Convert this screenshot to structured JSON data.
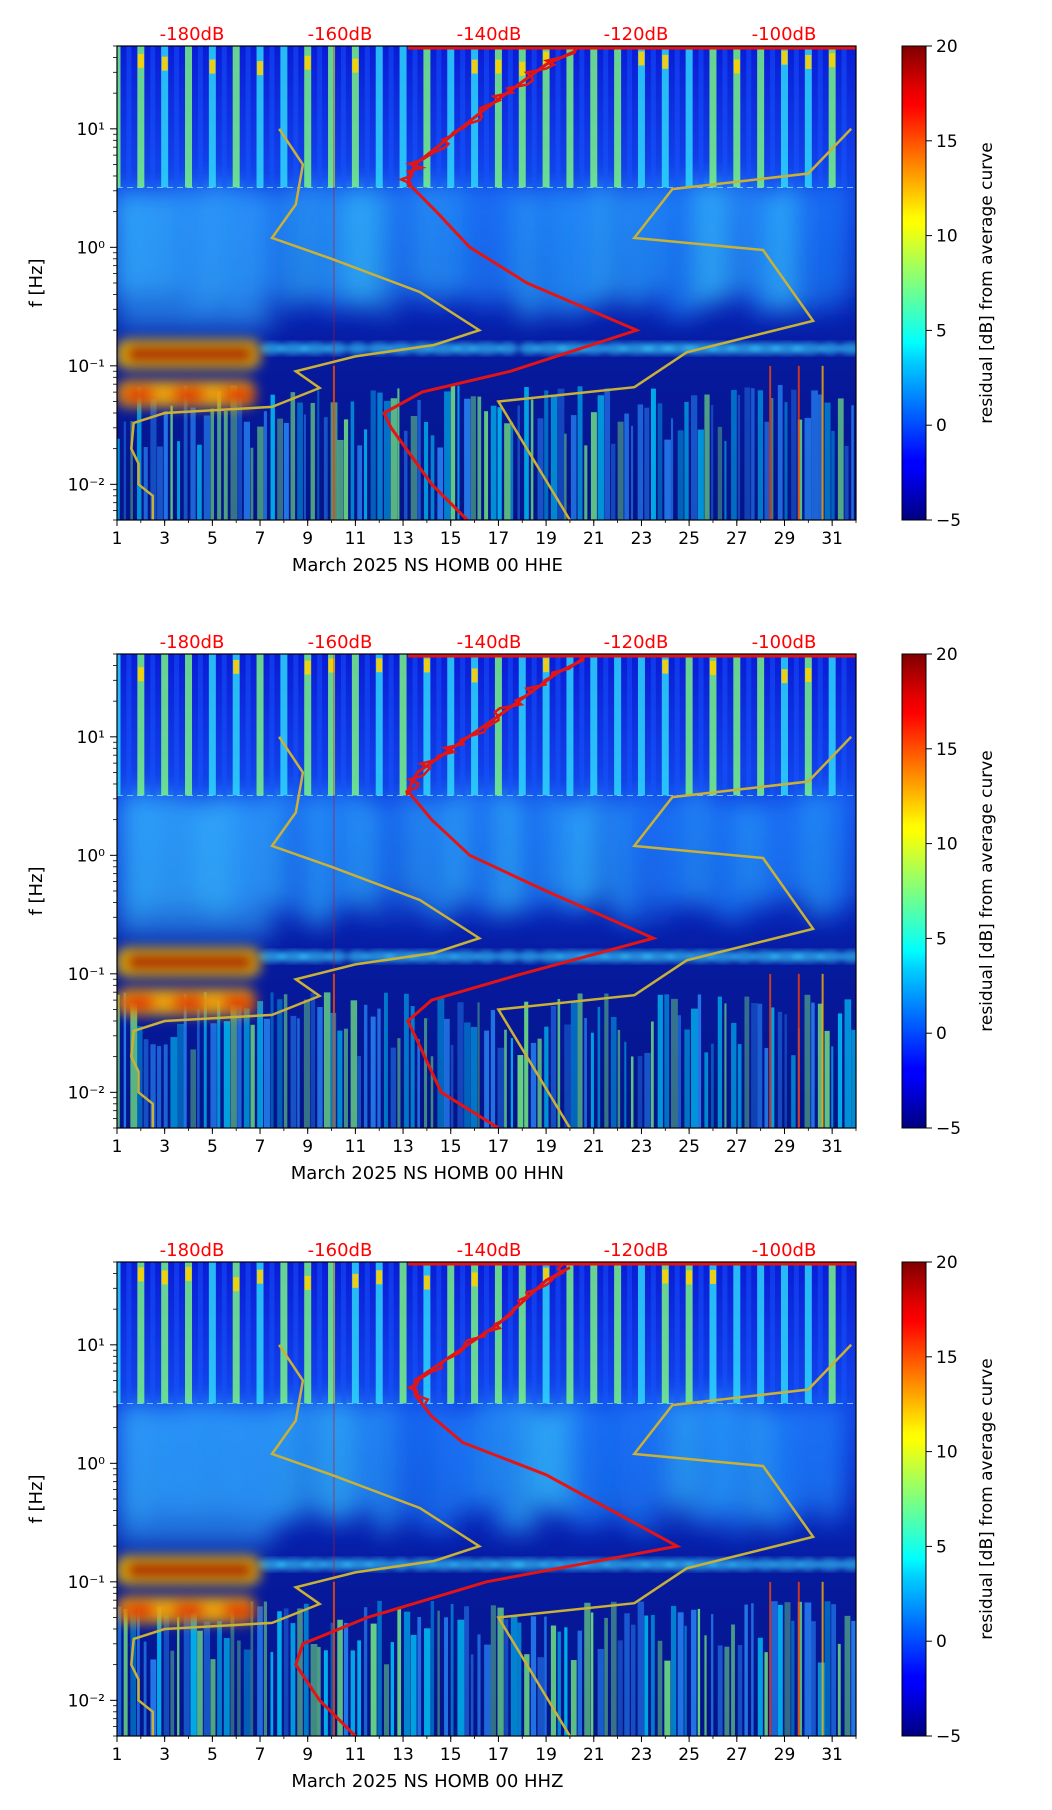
{
  "figure": {
    "colormap": "jet",
    "colors": {
      "db_scale": "#ff0000",
      "nlnm_nhnm": "#c9b037",
      "median_psd": "#e51414"
    }
  },
  "chart_data": [
    {
      "type": "heatmap",
      "channel": "HHE",
      "xlabel": "March 2025 NS HOMB 00 HHE",
      "ylabel": "f [Hz]",
      "x_ticks": [
        "1",
        "3",
        "5",
        "7",
        "9",
        "11",
        "13",
        "15",
        "17",
        "19",
        "21",
        "23",
        "25",
        "27",
        "29",
        "31"
      ],
      "xlim": [
        1,
        32
      ],
      "y_ticks": [
        "10⁻²",
        "10⁻¹",
        "10⁰",
        "10¹"
      ],
      "ylim_hz": [
        0.005,
        50
      ],
      "db_scale_labels": [
        "-180dB",
        "-160dB",
        "-140dB",
        "-120dB",
        "-100dB"
      ],
      "colorbar": {
        "label": "residual [dB] from average curve",
        "ticks": [
          "20",
          "15",
          "10",
          "5",
          "0",
          "−5"
        ],
        "range": [
          -5,
          20
        ]
      },
      "noise_models": {
        "nlnm": [
          [
            2.5,
            0.005
          ],
          [
            2.5,
            0.008
          ],
          [
            1.9,
            0.01
          ],
          [
            1.9,
            0.015
          ],
          [
            1.6,
            0.02
          ],
          [
            1.7,
            0.033
          ],
          [
            3.0,
            0.04
          ],
          [
            7.5,
            0.045
          ],
          [
            9.5,
            0.065
          ],
          [
            8.5,
            0.09
          ],
          [
            11.0,
            0.12
          ],
          [
            14.3,
            0.15
          ],
          [
            16.2,
            0.2
          ],
          [
            13.7,
            0.42
          ],
          [
            10.0,
            0.8
          ],
          [
            7.5,
            1.2
          ],
          [
            8.5,
            2.3
          ],
          [
            8.8,
            5
          ],
          [
            7.8,
            10
          ]
        ],
        "nhnm": [
          [
            20.0,
            0.005
          ],
          [
            17.0,
            0.05
          ],
          [
            22.7,
            0.066
          ],
          [
            24.9,
            0.13
          ],
          [
            30.2,
            0.24
          ],
          [
            28.1,
            0.95
          ],
          [
            22.7,
            1.2
          ],
          [
            24.3,
            3.1
          ],
          [
            30.0,
            4.2
          ],
          [
            31.8,
            10
          ]
        ]
      },
      "median_psd": [
        [
          15.7,
          0.005
        ],
        [
          14.2,
          0.01
        ],
        [
          12.5,
          0.03
        ],
        [
          12.2,
          0.04
        ],
        [
          13.8,
          0.06
        ],
        [
          17.5,
          0.09
        ],
        [
          22.8,
          0.2
        ],
        [
          18.2,
          0.5
        ],
        [
          15.8,
          1.0
        ],
        [
          14.4,
          2.0
        ],
        [
          13.2,
          3.5
        ],
        [
          13.5,
          5
        ],
        [
          16.5,
          15
        ],
        [
          19.0,
          35
        ],
        [
          20.2,
          45
        ]
      ]
    },
    {
      "type": "heatmap",
      "channel": "HHN",
      "xlabel": "March 2025 NS HOMB 00 HHN",
      "ylabel": "f [Hz]",
      "x_ticks": [
        "1",
        "3",
        "5",
        "7",
        "9",
        "11",
        "13",
        "15",
        "17",
        "19",
        "21",
        "23",
        "25",
        "27",
        "29",
        "31"
      ],
      "xlim": [
        1,
        32
      ],
      "y_ticks": [
        "10⁻²",
        "10⁻¹",
        "10⁰",
        "10¹"
      ],
      "ylim_hz": [
        0.005,
        50
      ],
      "db_scale_labels": [
        "-180dB",
        "-160dB",
        "-140dB",
        "-120dB",
        "-100dB"
      ],
      "colorbar": {
        "label": "residual [dB] from average curve",
        "ticks": [
          "20",
          "15",
          "10",
          "5",
          "0",
          "−5"
        ],
        "range": [
          -5,
          20
        ]
      },
      "noise_models": {
        "nlnm": [
          [
            2.5,
            0.005
          ],
          [
            2.5,
            0.008
          ],
          [
            1.9,
            0.01
          ],
          [
            1.9,
            0.015
          ],
          [
            1.6,
            0.02
          ],
          [
            1.7,
            0.033
          ],
          [
            3.0,
            0.04
          ],
          [
            7.5,
            0.045
          ],
          [
            9.5,
            0.065
          ],
          [
            8.5,
            0.09
          ],
          [
            11.0,
            0.12
          ],
          [
            14.3,
            0.15
          ],
          [
            16.2,
            0.2
          ],
          [
            13.7,
            0.42
          ],
          [
            10.0,
            0.8
          ],
          [
            7.5,
            1.2
          ],
          [
            8.5,
            2.3
          ],
          [
            8.8,
            5
          ],
          [
            7.8,
            10
          ]
        ],
        "nhnm": [
          [
            20.0,
            0.005
          ],
          [
            17.0,
            0.05
          ],
          [
            22.7,
            0.066
          ],
          [
            24.9,
            0.13
          ],
          [
            30.2,
            0.24
          ],
          [
            28.1,
            0.95
          ],
          [
            22.7,
            1.2
          ],
          [
            24.3,
            3.1
          ],
          [
            30.0,
            4.2
          ],
          [
            31.8,
            10
          ]
        ]
      },
      "median_psd": [
        [
          17.0,
          0.005
        ],
        [
          14.6,
          0.01
        ],
        [
          13.5,
          0.03
        ],
        [
          13.2,
          0.04
        ],
        [
          14.2,
          0.06
        ],
        [
          18.0,
          0.1
        ],
        [
          23.5,
          0.2
        ],
        [
          19.0,
          0.5
        ],
        [
          15.8,
          1.0
        ],
        [
          14.2,
          2.0
        ],
        [
          13.2,
          3.5
        ],
        [
          13.6,
          5
        ],
        [
          17.0,
          15
        ],
        [
          19.5,
          35
        ],
        [
          20.6,
          45
        ]
      ]
    },
    {
      "type": "heatmap",
      "channel": "HHZ",
      "xlabel": "March 2025 NS HOMB 00 HHZ",
      "ylabel": "f [Hz]",
      "x_ticks": [
        "1",
        "3",
        "5",
        "7",
        "9",
        "11",
        "13",
        "15",
        "17",
        "19",
        "21",
        "23",
        "25",
        "27",
        "29",
        "31"
      ],
      "xlim": [
        1,
        32
      ],
      "y_ticks": [
        "10⁻²",
        "10⁻¹",
        "10⁰",
        "10¹"
      ],
      "ylim_hz": [
        0.005,
        50
      ],
      "db_scale_labels": [
        "-180dB",
        "-160dB",
        "-140dB",
        "-120dB",
        "-100dB"
      ],
      "colorbar": {
        "label": "residual [dB] from average curve",
        "ticks": [
          "20",
          "15",
          "10",
          "5",
          "0",
          "−5"
        ],
        "range": [
          -5,
          20
        ]
      },
      "noise_models": {
        "nlnm": [
          [
            2.5,
            0.005
          ],
          [
            2.5,
            0.008
          ],
          [
            1.9,
            0.01
          ],
          [
            1.9,
            0.015
          ],
          [
            1.6,
            0.02
          ],
          [
            1.7,
            0.033
          ],
          [
            3.0,
            0.04
          ],
          [
            7.5,
            0.045
          ],
          [
            9.5,
            0.065
          ],
          [
            8.5,
            0.09
          ],
          [
            11.0,
            0.12
          ],
          [
            14.3,
            0.15
          ],
          [
            16.2,
            0.2
          ],
          [
            13.7,
            0.42
          ],
          [
            10.0,
            0.8
          ],
          [
            7.5,
            1.2
          ],
          [
            8.5,
            2.3
          ],
          [
            8.8,
            5
          ],
          [
            7.8,
            10
          ]
        ],
        "nhnm": [
          [
            20.0,
            0.005
          ],
          [
            17.0,
            0.05
          ],
          [
            22.7,
            0.066
          ],
          [
            24.9,
            0.13
          ],
          [
            30.2,
            0.24
          ],
          [
            28.1,
            0.95
          ],
          [
            22.7,
            1.2
          ],
          [
            24.3,
            3.1
          ],
          [
            30.0,
            4.2
          ],
          [
            31.8,
            10
          ]
        ]
      },
      "median_psd": [
        [
          11.0,
          0.005
        ],
        [
          9.5,
          0.01
        ],
        [
          8.5,
          0.02
        ],
        [
          8.8,
          0.03
        ],
        [
          11.5,
          0.05
        ],
        [
          16.5,
          0.1
        ],
        [
          24.5,
          0.2
        ],
        [
          19.0,
          0.8
        ],
        [
          15.5,
          1.5
        ],
        [
          14.2,
          2.5
        ],
        [
          13.5,
          3.8
        ],
        [
          13.5,
          5
        ],
        [
          17.0,
          15
        ],
        [
          19.0,
          35
        ],
        [
          20.0,
          45
        ]
      ]
    }
  ]
}
